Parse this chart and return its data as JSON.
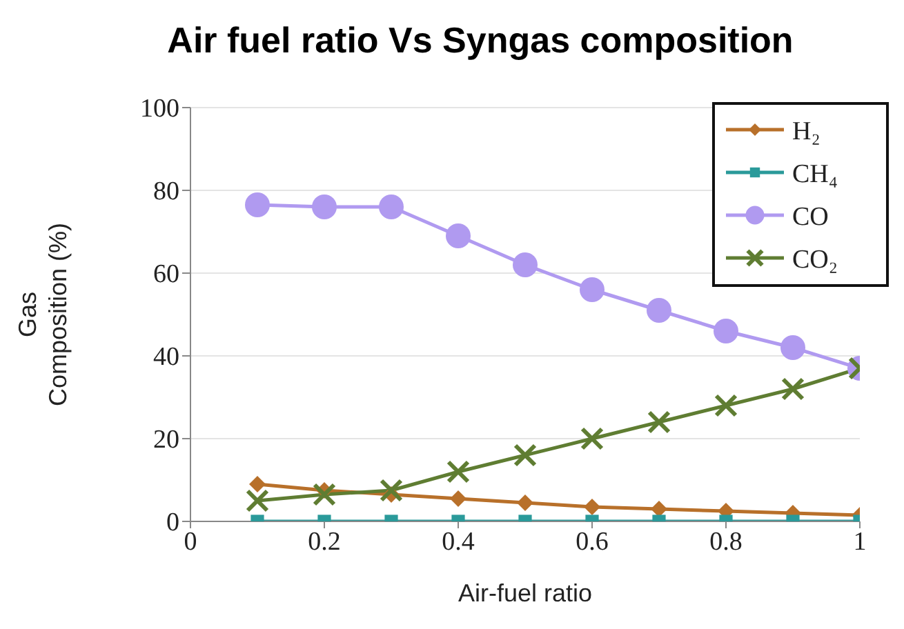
{
  "chart_data": {
    "type": "line",
    "title": "Air fuel ratio Vs Syngas composition",
    "xlabel": "Air-fuel ratio",
    "ylabel": "Gas Composition (%)",
    "x": [
      0.1,
      0.2,
      0.3,
      0.4,
      0.5,
      0.6,
      0.7,
      0.8,
      0.9,
      1.0
    ],
    "series": [
      {
        "name": "H₂",
        "color": "#b8702a",
        "marker": "diamond",
        "values": [
          9,
          7.5,
          6.5,
          5.5,
          4.5,
          3.5,
          3,
          2.5,
          2,
          1.5
        ]
      },
      {
        "name": "CH₄",
        "color": "#2a9a9a",
        "marker": "square",
        "values": [
          0,
          0,
          0,
          0,
          0,
          0,
          0,
          0,
          0,
          0
        ]
      },
      {
        "name": "CO",
        "color": "#b09af0",
        "marker": "circle",
        "values": [
          76.5,
          76,
          76,
          69,
          62,
          56,
          51,
          46,
          42,
          37
        ]
      },
      {
        "name": "CO₂",
        "color": "#5f7d32",
        "marker": "cross",
        "values": [
          5,
          6.5,
          7.5,
          12,
          16,
          20,
          24,
          28,
          32,
          37
        ]
      }
    ],
    "xlim": [
      0,
      1
    ],
    "xticks": [
      0,
      0.2,
      0.4,
      0.6,
      0.8,
      1
    ],
    "ylim": [
      0,
      100
    ],
    "yticks": [
      0,
      20,
      40,
      60,
      80,
      100
    ],
    "grid": "y",
    "legend": "top right"
  }
}
